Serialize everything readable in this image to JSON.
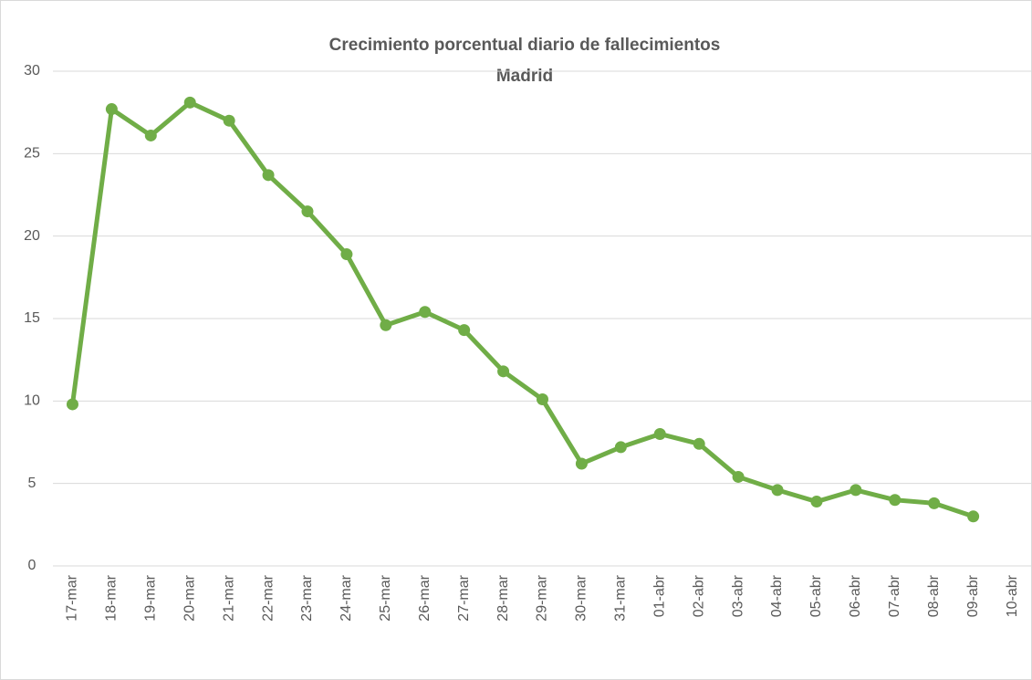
{
  "chart_data": {
    "type": "line",
    "title": "Crecimiento porcentual diario de fallecimientos",
    "subtitle": "Madrid",
    "categories": [
      "17-mar",
      "18-mar",
      "19-mar",
      "20-mar",
      "21-mar",
      "22-mar",
      "23-mar",
      "24-mar",
      "25-mar",
      "26-mar",
      "27-mar",
      "28-mar",
      "29-mar",
      "30-mar",
      "31-mar",
      "01-abr",
      "02-abr",
      "03-abr",
      "04-abr",
      "05-abr",
      "06-abr",
      "07-abr",
      "08-abr",
      "09-abr",
      "10-abr"
    ],
    "series": [
      {
        "name": "Madrid",
        "color": "#70ad47",
        "values": [
          9.8,
          27.7,
          26.1,
          28.1,
          27.0,
          23.7,
          21.5,
          18.9,
          14.6,
          15.4,
          14.3,
          11.8,
          10.1,
          6.2,
          7.2,
          8.0,
          7.4,
          5.4,
          4.6,
          3.9,
          4.6,
          4.0,
          3.8,
          3.0,
          null
        ]
      }
    ],
    "ylim": [
      0,
      30
    ],
    "yticks": [
      0,
      5,
      10,
      15,
      20,
      25,
      30
    ],
    "grid": true
  }
}
